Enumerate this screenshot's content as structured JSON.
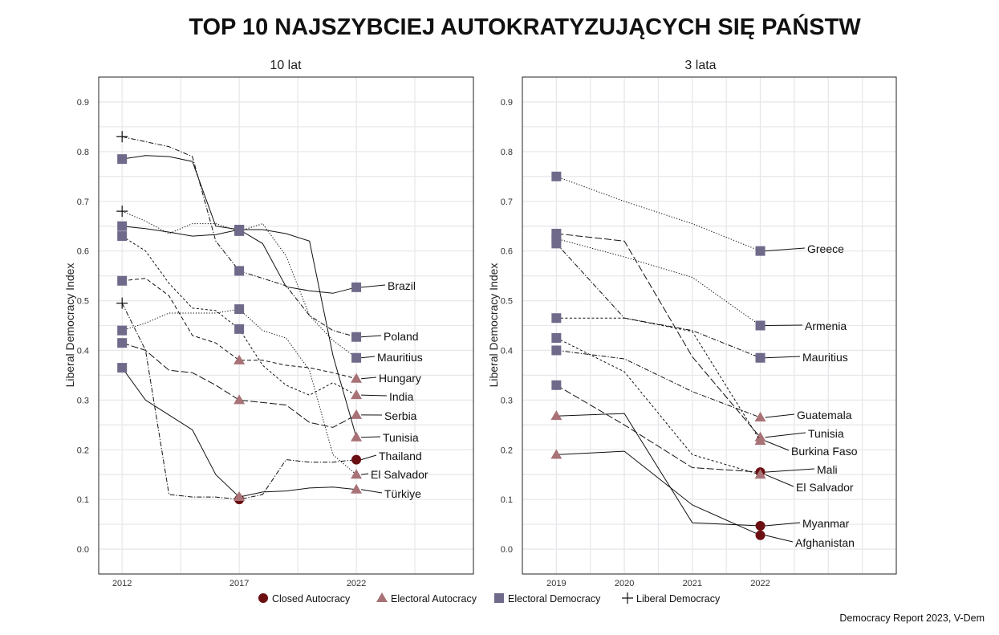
{
  "title": "TOP 10 NAJSZYBCIEJ AUTOKRATYZUJĄCYCH SIĘ PAŃSTW",
  "source": "Democracy Report 2023, V-Dem",
  "regime_colors": {
    "Closed Autocracy": "#6b0f12",
    "Electoral Autocracy": "#a87276",
    "Electoral Democracy": "#6f6a8a",
    "Liberal Democracy": "#111111"
  },
  "legend": [
    {
      "label": "Closed Autocracy",
      "marker": "circle"
    },
    {
      "label": "Electoral Autocracy",
      "marker": "triangle"
    },
    {
      "label": "Electoral Democracy",
      "marker": "square"
    },
    {
      "label": "Liberal Democracy",
      "marker": "plus"
    }
  ],
  "chart_data": [
    {
      "type": "line",
      "title": "10 lat",
      "ylabel": "Liberal Democracy Index",
      "xlabel": "",
      "xticks": [
        2012,
        2017,
        2022
      ],
      "yticks": [
        0.0,
        0.1,
        0.2,
        0.3,
        0.4,
        0.5,
        0.6,
        0.7,
        0.8,
        0.9
      ],
      "xlim": [
        2011,
        2027
      ],
      "ylim": [
        -0.05,
        0.95
      ],
      "grid": true,
      "x": [
        2012,
        2013,
        2014,
        2015,
        2016,
        2017,
        2018,
        2019,
        2020,
        2021,
        2022
      ],
      "marker_years": [
        2012,
        2017,
        2022
      ],
      "series": [
        {
          "name": "Brazil",
          "line_style": "solid",
          "values": [
            0.785,
            0.792,
            0.79,
            0.78,
            0.65,
            0.643,
            0.615,
            0.528,
            0.52,
            0.515,
            0.527
          ],
          "regimes": [
            "Electoral Democracy",
            "Electoral Democracy",
            "Electoral Democracy"
          ]
        },
        {
          "name": "Poland",
          "line_style": "dash-dot",
          "values": [
            0.83,
            0.82,
            0.81,
            0.79,
            0.62,
            0.56,
            0.545,
            0.53,
            0.47,
            0.44,
            0.427
          ],
          "regimes": [
            "Liberal Democracy",
            "Electoral Democracy",
            "Electoral Democracy"
          ]
        },
        {
          "name": "Mauritius",
          "line_style": "dotted",
          "values": [
            0.68,
            0.66,
            0.635,
            0.655,
            0.655,
            0.64,
            0.655,
            0.59,
            0.47,
            0.42,
            0.385
          ],
          "regimes": [
            "Liberal Democracy",
            "Electoral Democracy",
            "Electoral Democracy"
          ]
        },
        {
          "name": "Hungary",
          "line_style": "dashed",
          "values": [
            0.54,
            0.545,
            0.51,
            0.43,
            0.415,
            0.38,
            0.38,
            0.37,
            0.365,
            0.355,
            0.343
          ],
          "regimes": [
            "Electoral Democracy",
            "Electoral Autocracy",
            "Electoral Autocracy"
          ]
        },
        {
          "name": "India",
          "line_style": "short-dash",
          "values": [
            0.63,
            0.6,
            0.535,
            0.485,
            0.48,
            0.443,
            0.37,
            0.33,
            0.31,
            0.335,
            0.31
          ],
          "regimes": [
            "Electoral Democracy",
            "Electoral Democracy",
            "Electoral Autocracy"
          ]
        },
        {
          "name": "Serbia",
          "line_style": "long-dash",
          "values": [
            0.415,
            0.4,
            0.36,
            0.355,
            0.33,
            0.3,
            0.295,
            0.29,
            0.255,
            0.245,
            0.27
          ],
          "regimes": [
            "Electoral Democracy",
            "Electoral Autocracy",
            "Electoral Autocracy"
          ]
        },
        {
          "name": "Tunisia",
          "line_style": "solid",
          "values": [
            0.65,
            0.645,
            0.638,
            0.63,
            0.633,
            0.643,
            0.643,
            0.635,
            0.62,
            0.39,
            0.225
          ],
          "regimes": [
            "Electoral Democracy",
            "Electoral Democracy",
            "Electoral Autocracy"
          ]
        },
        {
          "name": "Thailand",
          "line_style": "dash-dot",
          "values": [
            0.495,
            0.4,
            0.11,
            0.105,
            0.105,
            0.1,
            0.11,
            0.18,
            0.175,
            0.175,
            0.18
          ],
          "regimes": [
            "Liberal Democracy",
            "Closed Autocracy",
            "Closed Autocracy"
          ]
        },
        {
          "name": "El Salvador",
          "line_style": "dotted",
          "values": [
            0.44,
            0.455,
            0.475,
            0.475,
            0.475,
            0.483,
            0.44,
            0.425,
            0.36,
            0.19,
            0.15
          ],
          "regimes": [
            "Electoral Democracy",
            "Electoral Democracy",
            "Electoral Autocracy"
          ]
        },
        {
          "name": "Türkiye",
          "line_style": "solid",
          "values": [
            0.365,
            0.3,
            0.27,
            0.24,
            0.15,
            0.105,
            0.115,
            0.117,
            0.123,
            0.125,
            0.12
          ],
          "regimes": [
            "Electoral Democracy",
            "Electoral Autocracy",
            "Electoral Autocracy"
          ]
        }
      ]
    },
    {
      "type": "line",
      "title": "3 lata",
      "ylabel": "Liberal Democracy Index",
      "xlabel": "",
      "xticks": [
        2019,
        2020,
        2021,
        2022
      ],
      "yticks": [
        0.0,
        0.1,
        0.2,
        0.3,
        0.4,
        0.5,
        0.6,
        0.7,
        0.8,
        0.9
      ],
      "xlim": [
        2018.5,
        2024
      ],
      "ylim": [
        -0.05,
        0.95
      ],
      "grid": true,
      "x": [
        2019,
        2020,
        2021,
        2022
      ],
      "marker_years": [
        2019,
        2022
      ],
      "series": [
        {
          "name": "Greece",
          "line_style": "dotted",
          "values": [
            0.75,
            0.7,
            0.655,
            0.6
          ],
          "regimes": [
            "Electoral Democracy",
            "Electoral Democracy"
          ]
        },
        {
          "name": "Armenia",
          "line_style": "dotted",
          "values": [
            0.625,
            0.588,
            0.547,
            0.45
          ],
          "regimes": [
            "Electoral Democracy",
            "Electoral Democracy"
          ]
        },
        {
          "name": "Mauritius",
          "line_style": "dash-dot",
          "values": [
            0.615,
            0.465,
            0.44,
            0.385
          ],
          "regimes": [
            "Electoral Democracy",
            "Electoral Democracy"
          ]
        },
        {
          "name": "Guatemala",
          "line_style": "dash-dot",
          "values": [
            0.4,
            0.383,
            0.317,
            0.265
          ],
          "regimes": [
            "Electoral Democracy",
            "Electoral Autocracy"
          ]
        },
        {
          "name": "Tunisia",
          "line_style": "long-dash",
          "values": [
            0.635,
            0.62,
            0.387,
            0.225
          ],
          "regimes": [
            "Electoral Democracy",
            "Electoral Autocracy"
          ]
        },
        {
          "name": "Burkina Faso",
          "line_style": "short-dash",
          "values": [
            0.465,
            0.465,
            0.438,
            0.218
          ],
          "regimes": [
            "Electoral Democracy",
            "Electoral Autocracy"
          ]
        },
        {
          "name": "Mali",
          "line_style": "long-dash",
          "values": [
            0.33,
            0.25,
            0.164,
            0.155
          ],
          "regimes": [
            "Electoral Democracy",
            "Closed Autocracy"
          ]
        },
        {
          "name": "El Salvador",
          "line_style": "short-dash",
          "values": [
            0.425,
            0.357,
            0.19,
            0.15
          ],
          "regimes": [
            "Electoral Democracy",
            "Electoral Autocracy"
          ]
        },
        {
          "name": "Myanmar",
          "line_style": "solid",
          "values": [
            0.268,
            0.273,
            0.053,
            0.047
          ],
          "regimes": [
            "Electoral Autocracy",
            "Closed Autocracy"
          ]
        },
        {
          "name": "Afghanistan",
          "line_style": "solid",
          "values": [
            0.19,
            0.197,
            0.089,
            0.028
          ],
          "regimes": [
            "Electoral Autocracy",
            "Closed Autocracy"
          ]
        }
      ]
    }
  ]
}
